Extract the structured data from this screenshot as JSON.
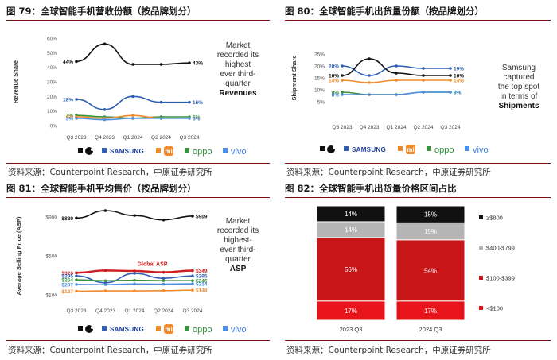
{
  "colors": {
    "apple": "#111111",
    "samsung": "#2f5fb3",
    "xiaomi": "#f08a2a",
    "oppo": "#3a8f3a",
    "vivo": "#4a8fe0",
    "global": "#cc1f1f"
  },
  "legend_brands": [
    "apple-logo",
    "SAMSUNG",
    "mi",
    "oppo",
    "vivo"
  ],
  "source_text": "资料来源：Counterpoint Research，中原证券研究所",
  "chart_data": [
    {
      "id": "fig79",
      "type": "line",
      "figure_title": "图 79：全球智能手机营收份额（按品牌划分）",
      "ylabel": "Revenue Share",
      "ylim": [
        0,
        60
      ],
      "yticks": [
        "0%",
        "10%",
        "20%",
        "30%",
        "40%",
        "50%",
        "60%"
      ],
      "categories": [
        "Q3 2023",
        "Q4 2023",
        "Q1 2024",
        "Q2 2024",
        "Q3 2024"
      ],
      "series": [
        {
          "name": "Apple",
          "values": [
            44,
            56,
            42,
            42,
            43
          ],
          "start_label": "44%",
          "end_label": "43%"
        },
        {
          "name": "Samsung",
          "values": [
            18,
            11,
            20,
            16,
            16
          ],
          "start_label": "18%",
          "end_label": "16%"
        },
        {
          "name": "Oppo",
          "values": [
            7,
            6,
            5,
            6,
            6
          ],
          "start_label": "7%",
          "end_label": "6%"
        },
        {
          "name": "Xiaomi",
          "values": [
            6,
            5,
            7,
            5,
            5
          ],
          "start_label": "6%",
          "end_label": "5%"
        },
        {
          "name": "Vivo",
          "values": [
            5,
            4,
            5,
            5,
            5
          ],
          "start_label": "5%",
          "end_label": "5%"
        }
      ],
      "note_lines": [
        "Market",
        "recorded its",
        "highest",
        "ever third-",
        "quarter"
      ],
      "note_bold": "Revenues"
    },
    {
      "id": "fig80",
      "type": "line",
      "figure_title": "图 80：全球智能手机出货量份额（按品牌划分）",
      "ylabel": "Shipment Share",
      "ylim": [
        5,
        25
      ],
      "yticks": [
        "5%",
        "10%",
        "15%",
        "20%",
        "25%"
      ],
      "categories": [
        "Q3 2023",
        "Q4 2023",
        "Q1 2024",
        "Q2 2024",
        "Q3 2024"
      ],
      "series": [
        {
          "name": "Samsung",
          "values": [
            20,
            16,
            20,
            19,
            19
          ],
          "start_label": "20%",
          "end_label": "19%"
        },
        {
          "name": "Apple",
          "values": [
            16,
            23,
            17,
            16,
            16
          ],
          "start_label": "16%",
          "end_label": "16%"
        },
        {
          "name": "Xiaomi",
          "values": [
            14,
            13,
            14,
            14,
            14
          ],
          "start_label": "14%",
          "end_label": "14%"
        },
        {
          "name": "Oppo",
          "values": [
            9,
            8,
            8,
            9,
            9
          ],
          "start_label": "9%",
          "end_label": "9%"
        },
        {
          "name": "Vivo",
          "values": [
            8,
            8,
            8,
            9,
            9
          ],
          "start_label": "8%",
          "end_label": "9%"
        }
      ],
      "note_lines": [
        "Samsung",
        "captured",
        "the top spot",
        "in terms of"
      ],
      "note_bold": "Shipments"
    },
    {
      "id": "fig81",
      "type": "line",
      "figure_title": "图 81：全球智能手机平均售价（按品牌划分）",
      "ylabel": "Average Selling Price (ASP)",
      "ylim": [
        100,
        900
      ],
      "yticks": [
        "$100",
        "$500",
        "$900"
      ],
      "categories": [
        "Q3 2023",
        "Q4 2023",
        "Q1 2024",
        "Q2 2024",
        "Q3 2024"
      ],
      "series": [
        {
          "name": "Apple",
          "values": [
            889,
            965,
            915,
            870,
            909
          ],
          "start_label": "$889",
          "end_label": "$909"
        },
        {
          "name": "Global ASP",
          "values": [
            326,
            350,
            345,
            332,
            349
          ],
          "start_label": "$326",
          "end_label": "$349",
          "annotation": "Global ASP"
        },
        {
          "name": "Samsung",
          "values": [
            295,
            225,
            320,
            270,
            295
          ],
          "start_label": "$295",
          "end_label": "$295"
        },
        {
          "name": "Oppo",
          "values": [
            254,
            245,
            250,
            246,
            246
          ],
          "start_label": "$254",
          "end_label": "$246"
        },
        {
          "name": "Vivo",
          "values": [
            207,
            205,
            212,
            210,
            214
          ],
          "start_label": "$207",
          "end_label": "$214"
        },
        {
          "name": "Xiaomi",
          "values": [
            137,
            140,
            140,
            142,
            148
          ],
          "start_label": "$137",
          "end_label": "$148"
        }
      ],
      "note_lines": [
        "Market",
        "recorded its",
        "highest-",
        "ever third-",
        "quarter"
      ],
      "note_bold": "ASP"
    },
    {
      "id": "fig82",
      "type": "bar",
      "stacked": true,
      "figure_title": "图 82：全球智能手机出货量价格区间占比",
      "categories": [
        "2023 Q3",
        "2024 Q3"
      ],
      "series": [
        {
          "name": "<$100",
          "values": [
            17,
            17
          ],
          "labels": [
            "17%",
            "17%"
          ],
          "color": "#e8141b"
        },
        {
          "name": "$100-$399",
          "values": [
            56,
            54
          ],
          "labels": [
            "56%",
            "54%"
          ],
          "color": "#c81618"
        },
        {
          "name": "$400-$799",
          "values": [
            14,
            15
          ],
          "labels": [
            "14%",
            "15%"
          ],
          "color": "#b5b5b5"
        },
        {
          "name": "≥$800",
          "values": [
            14,
            15
          ],
          "labels": [
            "14%",
            "15%"
          ],
          "color": "#111111"
        }
      ]
    }
  ]
}
